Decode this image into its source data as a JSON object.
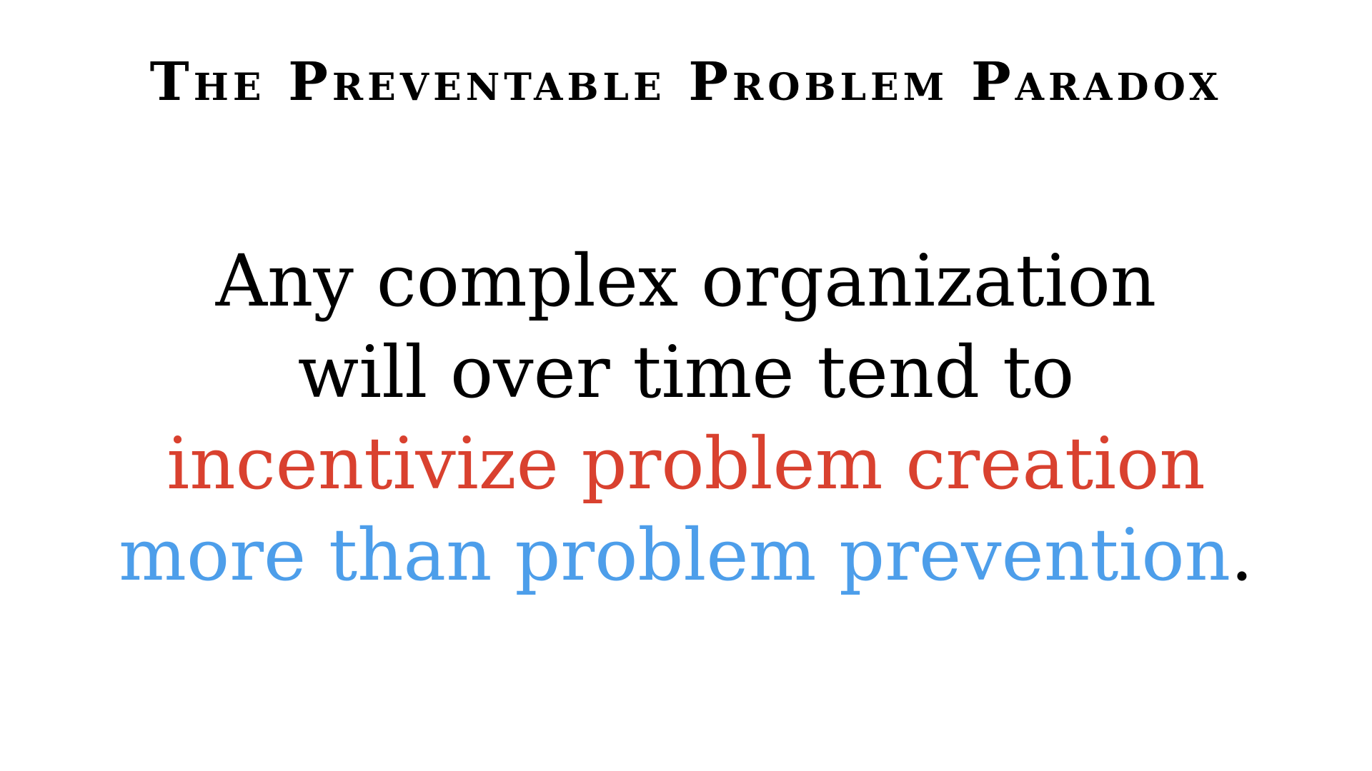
{
  "slide": {
    "title": "The Preventable Problem Paradox",
    "lines": [
      {
        "text": "Any complex organization"
      },
      {
        "text": "will over time tend to"
      },
      {
        "text": "incentivize problem creation",
        "color": "#d9412f"
      },
      {
        "text": "more than problem prevention",
        "color": "#4d9eea",
        "suffix": "."
      }
    ]
  },
  "colors": {
    "background": "#ffffff",
    "text": "#000000",
    "accent_red": "#d9412f",
    "accent_blue": "#4d9eea"
  }
}
